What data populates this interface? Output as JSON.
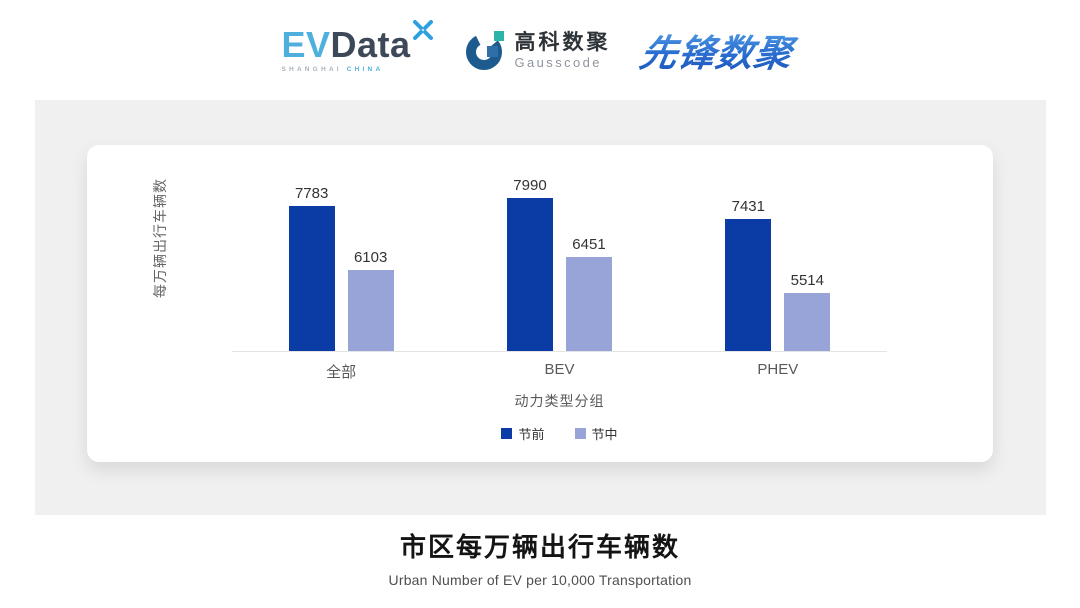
{
  "header": {
    "evdata_logo": {
      "ev": "EV",
      "data": "Data",
      "sub_shanghai": "SHANGHAI",
      "sub_china": "CHINA"
    },
    "gausscode_logo": {
      "cn": "高科数聚",
      "en": "Gausscode"
    },
    "pioneer_logo": {
      "text": "先锋数聚"
    }
  },
  "chart_data": {
    "type": "bar",
    "title": "市区每万辆出行车辆数",
    "subtitle": "Urban Number of EV per 10,000 Transportation",
    "categories": [
      "全部",
      "BEV",
      "PHEV"
    ],
    "series": [
      {
        "name": "节前",
        "color": "#0b3ca6",
        "values": [
          7783,
          7990,
          7431
        ]
      },
      {
        "name": "节中",
        "color": "#98a3d8",
        "values": [
          6103,
          6451,
          5514
        ]
      }
    ],
    "ylabel": "每万辆出行车辆数",
    "xlabel": "动力类型分组",
    "ylim": [
      4000,
      8500
    ],
    "grid": false,
    "legend_position": "bottom",
    "value_labels": true
  },
  "colors": {
    "panel_bg": "#f0f0f1",
    "card_bg": "#ffffff",
    "axis_line": "#e4e4e4",
    "evdata_blue": "#4fb0dd",
    "evdata_dark": "#3d4859",
    "gauss_blue": "#1d5b8e",
    "gauss_teal": "#2cb3aa",
    "pioneer_blue": "#2b6fd0"
  }
}
